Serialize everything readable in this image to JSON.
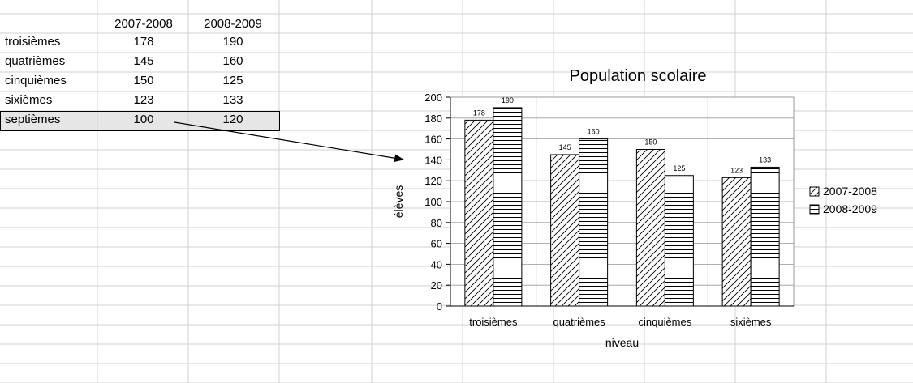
{
  "sheet": {
    "headers": [
      "2007-2008",
      "2008-2009"
    ],
    "rows": [
      {
        "label": "troisièmes",
        "v1": "178",
        "v2": "190"
      },
      {
        "label": "quatrièmes",
        "v1": "145",
        "v2": "160"
      },
      {
        "label": "cinquièmes",
        "v1": "150",
        "v2": "125"
      },
      {
        "label": "sixièmes",
        "v1": "123",
        "v2": "133"
      },
      {
        "label": "septièmes",
        "v1": "100",
        "v2": "120"
      }
    ],
    "selection_color": "#e6e6e6"
  },
  "chart_data": {
    "type": "bar",
    "title": "Population scolaire",
    "xlabel": "niveau",
    "ylabel": "élèves",
    "categories": [
      "troisièmes",
      "quatrièmes",
      "cinquièmes",
      "sixièmes"
    ],
    "series": [
      {
        "name": "2007-2008",
        "values": [
          178,
          145,
          150,
          123
        ],
        "pattern": "diagonal-hatch"
      },
      {
        "name": "2008-2009",
        "values": [
          190,
          160,
          125,
          133
        ],
        "pattern": "horizontal-hatch"
      }
    ],
    "ylim": [
      0,
      200
    ],
    "ytick_step": 20,
    "grid": true,
    "legend_position": "right",
    "data_labels": true
  }
}
